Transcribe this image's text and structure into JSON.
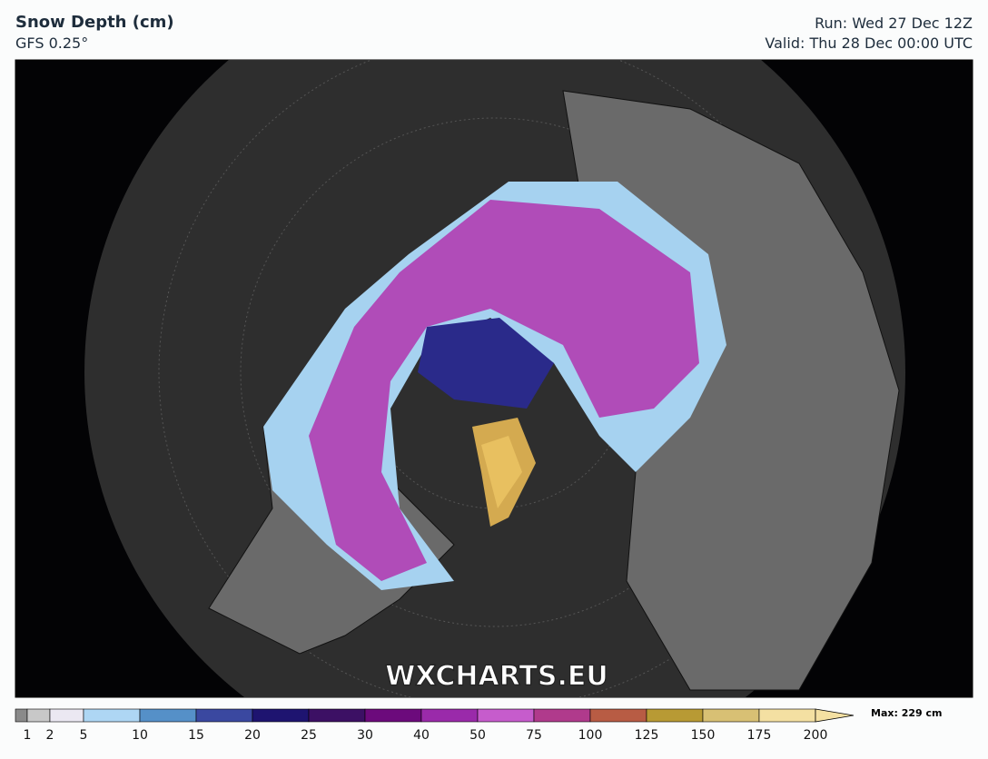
{
  "header": {
    "title": "Snow Depth (cm)",
    "model": "GFS 0.25°",
    "run": "Run: Wed 27 Dec 12Z",
    "valid": "Valid: Thu 28 Dec 00:00 UTC"
  },
  "map": {
    "watermark": "WXCHARTS.EU"
  },
  "legend": {
    "ticks": [
      1,
      2,
      5,
      10,
      15,
      20,
      25,
      30,
      40,
      50,
      75,
      100,
      125,
      150,
      175,
      200
    ],
    "colors": [
      "#8a8a8a",
      "#c8c8c8",
      "#ebe8f2",
      "#aed6f4",
      "#5590c8",
      "#3a48a0",
      "#1e1470",
      "#3c1064",
      "#6c0a7c",
      "#9a2aaa",
      "#c65ccc",
      "#b03a8c",
      "#b85c44",
      "#b89a34",
      "#d8c074",
      "#f4e0a2"
    ],
    "max": "Max: 229 cm"
  }
}
